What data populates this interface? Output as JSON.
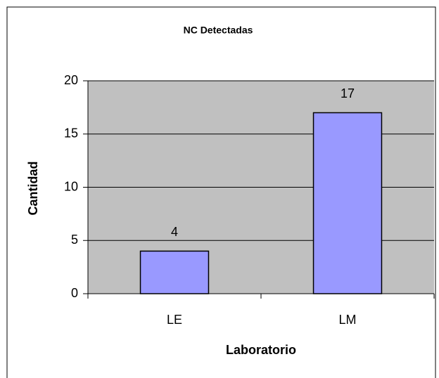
{
  "chart_data": {
    "type": "bar",
    "title": "NC Detectadas",
    "x_label": "Laboratorio",
    "y_label": "Cantidad",
    "categories": [
      "LE",
      "LM"
    ],
    "values": [
      4,
      17
    ],
    "color": "#9999ff",
    "ylim": [
      0,
      20
    ],
    "yticks": [
      0,
      5,
      10,
      15,
      20
    ],
    "grid": true,
    "data_labels": true
  }
}
